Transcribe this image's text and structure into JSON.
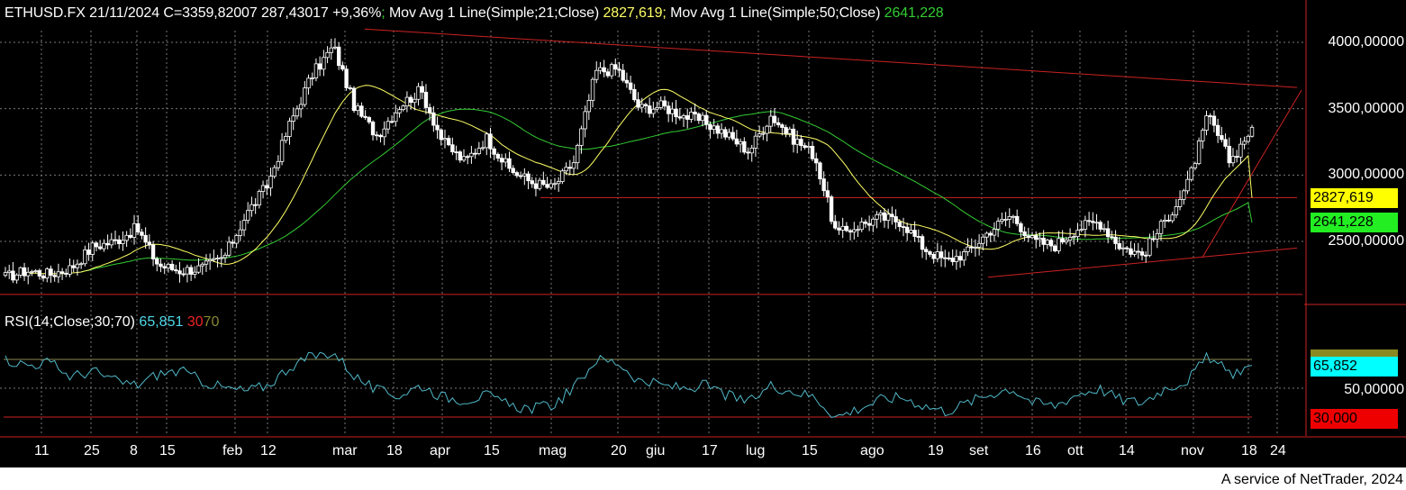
{
  "header": {
    "symbol": "ETHUSD.FX",
    "date": "21/11/2024",
    "close": "C=3359,82007",
    "change": "287,43017",
    "change_pct": "+9,36%",
    "sep": ";",
    "ma21_label": "Mov Avg 1 Line(Simple;21;Close)",
    "ma21_value": "2827,619",
    "ma50_label": "Mov Avg 1 Line(Simple;50;Close)",
    "ma50_value": "2641,228"
  },
  "rsi_header": {
    "label": "RSI(14;Close;30;70)",
    "value": "65,851",
    "low": "30",
    "high": "70"
  },
  "price_axis": {
    "ticks": [
      "4000,00000",
      "3500,00000",
      "3000,00000",
      "2500,00000"
    ],
    "badge_ma21": "2827,619",
    "badge_ma50": "2641,228"
  },
  "rsi_axis": {
    "tick": "50,00000",
    "badge_rsi": "65,852",
    "badge_low": "30,000"
  },
  "x_axis": {
    "labels": [
      "11",
      "25",
      "8",
      "15",
      "feb",
      "12",
      "mar",
      "18",
      "apr",
      "15",
      "mag",
      "20",
      "giu",
      "17",
      "lug",
      "15",
      "ago",
      "19",
      "set",
      "16",
      "ott",
      "14",
      "nov",
      "18",
      "24"
    ]
  },
  "footer": "A service of NetTrader, 2024",
  "colors": {
    "background": "#000000",
    "candle": "#ffffff",
    "ma21": "#ffff66",
    "ma50": "#33cc33",
    "trendline": "#cc2222",
    "rsi": "#4fb8c8",
    "rsi_badge": "#00ffff",
    "ma21_badge": "#ffff00",
    "ma50_badge": "#22ee22",
    "low_badge": "#ee0000",
    "grid": "#777777",
    "pct": "#33cc33",
    "ma21_text": "#ffff66",
    "ma50_text": "#33cc33",
    "low_text": "#ee2222",
    "high_text": "#888833"
  },
  "chart_data": {
    "type": "candlestick",
    "title": "ETHUSD.FX 21/11/2024",
    "ylim": [
      2100,
      4150
    ],
    "y_ticks": [
      2500,
      3000,
      3500,
      4000
    ],
    "x": [
      "11",
      "25",
      "8",
      "15",
      "feb",
      "12",
      "mar",
      "18",
      "apr",
      "15",
      "mag",
      "20",
      "giu",
      "17",
      "lug",
      "15",
      "ago",
      "19",
      "set",
      "16",
      "ott",
      "14",
      "nov",
      "18",
      "24"
    ],
    "grid": true,
    "close_approx": [
      2230,
      2280,
      2250,
      2300,
      2460,
      2500,
      2600,
      2320,
      2280,
      2300,
      2380,
      2700,
      2930,
      3380,
      3750,
      3970,
      3500,
      3300,
      3520,
      3640,
      3250,
      3100,
      3280,
      3050,
      2950,
      2900,
      3100,
      3780,
      3800,
      3500,
      3520,
      3450,
      3400,
      3300,
      3180,
      3450,
      3280,
      3150,
      2550,
      2620,
      2680,
      2650,
      2450,
      2350,
      2420,
      2580,
      2700,
      2500,
      2470,
      2600,
      2650,
      2460,
      2400,
      2650,
      2900,
      3450,
      3100,
      3359.82
    ],
    "series": [
      {
        "name": "Mov Avg 1 Line(Simple;21;Close)",
        "last": 2827.619
      },
      {
        "name": "Mov Avg 1 Line(Simple;50;Close)",
        "last": 2641.228
      }
    ],
    "rsi": {
      "label": "RSI(14;Close;30;70)",
      "last": 65.851,
      "levels": [
        30,
        50,
        70
      ],
      "values_approx": [
        70,
        66,
        68,
        58,
        62,
        55,
        52,
        60,
        62,
        55,
        50,
        48,
        52,
        65,
        72,
        75,
        58,
        48,
        45,
        52,
        44,
        42,
        45,
        38,
        36,
        38,
        50,
        70,
        68,
        55,
        52,
        50,
        52,
        45,
        40,
        52,
        48,
        44,
        30,
        36,
        42,
        44,
        38,
        34,
        40,
        46,
        50,
        40,
        38,
        46,
        50,
        42,
        40,
        50,
        55,
        72,
        60,
        65.85
      ]
    }
  }
}
